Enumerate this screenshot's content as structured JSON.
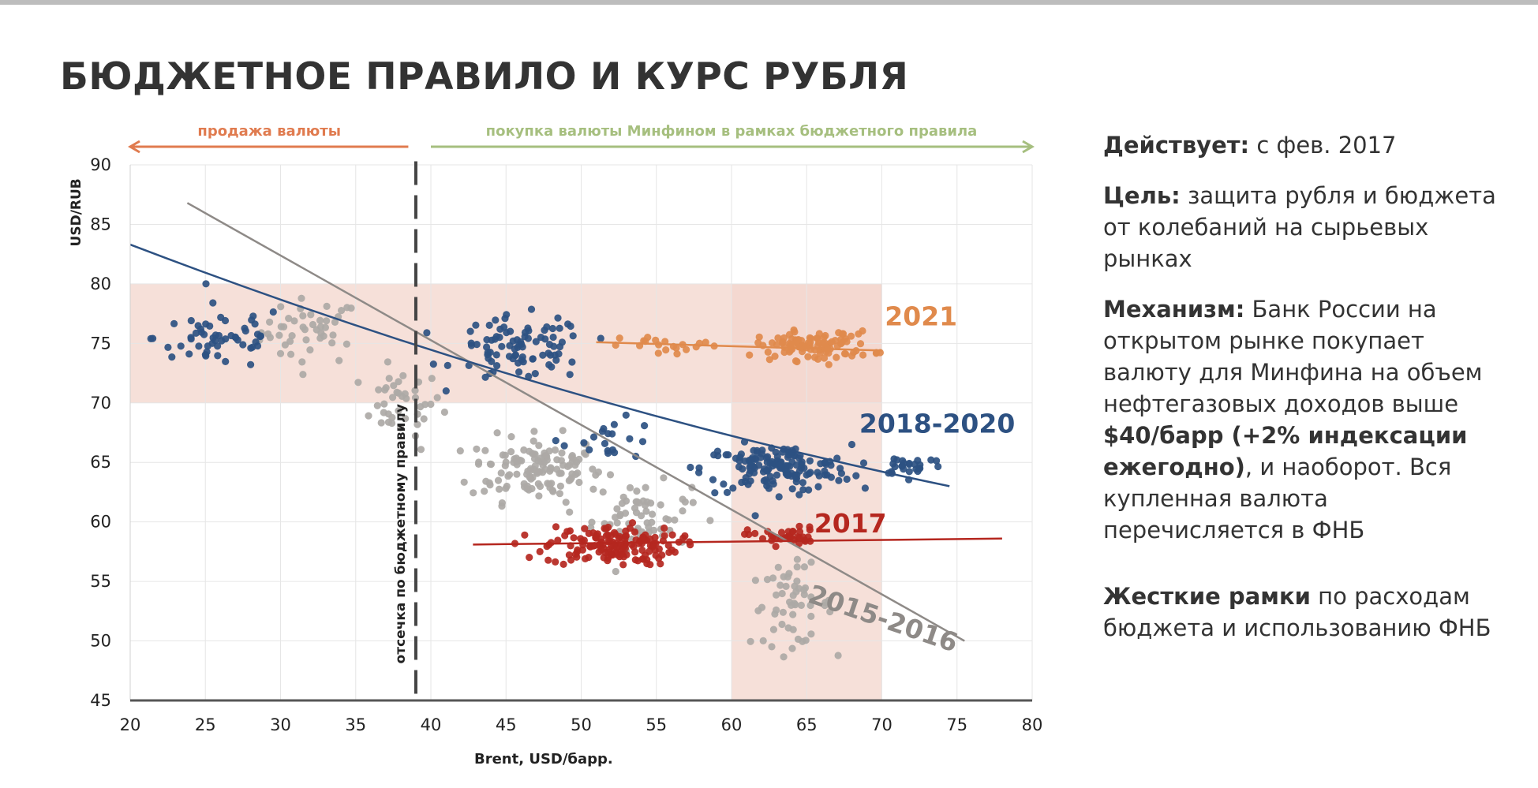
{
  "title": "БЮДЖЕТНОЕ ПРАВИЛО И КУРС РУБЛЯ",
  "side": {
    "p1_bold": "Действует:",
    "p1_text": " с фев. 2017",
    "p2_bold": "Цель:",
    "p2_text": " защита рубля и бюджета от колебаний на сырьевых рынках",
    "p3_bold": "Механизм:",
    "p3_text": " Банк России на открытом рынке покупает валюту для Минфина на объем нефтегазовых доходов выше ",
    "p3_bold2": "$40/барр (+2% индексации ежегодно)",
    "p3_text2": ", и наоборот. Вся купленная валюта перечисляется в ФНБ",
    "p4_bold": "Жесткие рамки",
    "p4_text": " по расходам бюджета и использованию ФНБ"
  },
  "chart_data": {
    "type": "scatter",
    "xlabel": "Brent, USD/барр.",
    "ylabel": "USD/RUB",
    "xlim": [
      20,
      80
    ],
    "ylim": [
      45,
      90
    ],
    "x_ticks": [
      20,
      25,
      30,
      35,
      40,
      45,
      50,
      55,
      60,
      65,
      70,
      75,
      80
    ],
    "y_ticks": [
      45,
      50,
      55,
      60,
      65,
      70,
      75,
      80,
      85,
      90
    ],
    "grid": true,
    "arrows": [
      {
        "label": "продажа валюты",
        "from": 38.5,
        "to": 20,
        "color": "#e07b4f"
      },
      {
        "label": "покупка валюты Минфином в рамках бюджетного правила",
        "from": 40,
        "to": 80,
        "color": "#a6bf7f"
      }
    ],
    "cutoff": {
      "x": 39,
      "label": "отсечка по бюджетному правилу"
    },
    "bands": [
      {
        "x": [
          20,
          70
        ],
        "y": [
          70,
          80
        ],
        "color": "#f3d6cc"
      },
      {
        "x": [
          60,
          70
        ],
        "y": [
          45,
          80
        ],
        "color": "#f3d6cc"
      }
    ],
    "series": [
      {
        "name": "2015-2016",
        "color": "#ada9a6",
        "clusters": [
          {
            "cx": 32,
            "cy": 76,
            "sx": 3,
            "sy": 2.5,
            "n": 45
          },
          {
            "cx": 38,
            "cy": 70,
            "sx": 2.5,
            "sy": 2.5,
            "n": 40
          },
          {
            "cx": 47,
            "cy": 64.5,
            "sx": 4,
            "sy": 2.5,
            "n": 130
          },
          {
            "cx": 54,
            "cy": 60.5,
            "sx": 3,
            "sy": 2.5,
            "n": 60
          },
          {
            "cx": 64,
            "cy": 53,
            "sx": 2.5,
            "sy": 3,
            "n": 55
          }
        ],
        "trend": [
          [
            23.8,
            86.8
          ],
          [
            75.5,
            50
          ]
        ]
      },
      {
        "name": "2018-2020",
        "color": "#2d5182",
        "clusters": [
          {
            "cx": 26,
            "cy": 75.5,
            "sx": 4,
            "sy": 2.5,
            "n": 55
          },
          {
            "cx": 46,
            "cy": 74.5,
            "sx": 4,
            "sy": 2.5,
            "n": 90
          },
          {
            "cx": 52,
            "cy": 67,
            "sx": 3,
            "sy": 1.5,
            "n": 20
          },
          {
            "cx": 63,
            "cy": 64.5,
            "sx": 4.5,
            "sy": 1.8,
            "n": 150
          },
          {
            "cx": 72,
            "cy": 64.8,
            "sx": 2,
            "sy": 0.8,
            "n": 25
          }
        ],
        "trend": [
          [
            20,
            83.3
          ],
          [
            74.5,
            63
          ]
        ]
      },
      {
        "name": "2017",
        "color": "#b5271f",
        "clusters": [
          {
            "cx": 52,
            "cy": 58,
            "sx": 4,
            "sy": 1.5,
            "n": 150
          },
          {
            "cx": 63.5,
            "cy": 58.8,
            "sx": 2.2,
            "sy": 0.7,
            "n": 35
          }
        ],
        "trend": [
          [
            42.8,
            58.1
          ],
          [
            78,
            58.6
          ]
        ]
      },
      {
        "name": "2021",
        "color": "#e08a4c",
        "clusters": [
          {
            "cx": 56,
            "cy": 74.8,
            "sx": 3,
            "sy": 0.8,
            "n": 20
          },
          {
            "cx": 65.5,
            "cy": 74.8,
            "sx": 3.5,
            "sy": 1.1,
            "n": 100
          }
        ],
        "trend": [
          [
            51,
            75.1
          ],
          [
            70,
            74.4
          ]
        ]
      }
    ],
    "series_labels": [
      {
        "text": "2021",
        "x": 70.2,
        "y": 76.5
      },
      {
        "text": "2018-2020",
        "x": 68.5,
        "y": 67.5
      },
      {
        "text": "2017",
        "x": 65.5,
        "y": 59.1
      },
      {
        "text": "2015-2016",
        "x": 65,
        "y": 53.3
      }
    ]
  }
}
